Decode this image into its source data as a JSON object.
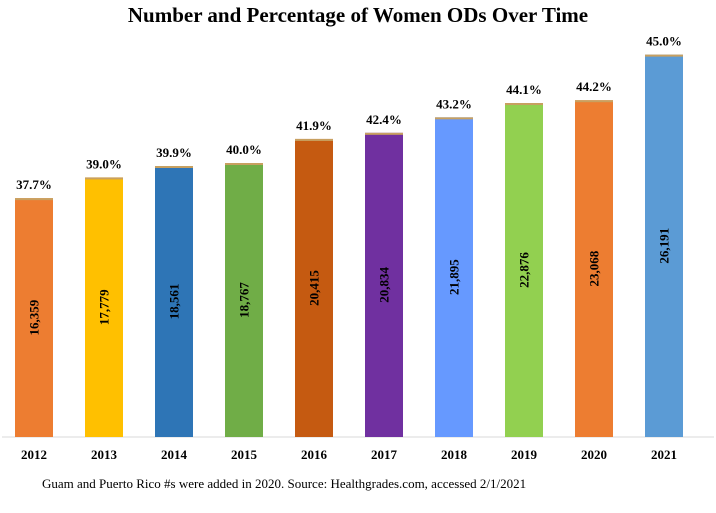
{
  "chart_data": {
    "type": "bar",
    "title": "Number and Percentage of Women ODs Over Time",
    "xlabel": "",
    "ylabel": "",
    "ylim": [
      0,
      28000
    ],
    "grid": false,
    "legend": "none",
    "categories": [
      "2012",
      "2013",
      "2014",
      "2015",
      "2016",
      "2017",
      "2018",
      "2019",
      "2020",
      "2021"
    ],
    "series": [
      {
        "values": [
          16359,
          17779,
          18561,
          18767,
          20415,
          20834,
          21895,
          22876,
          23068,
          26191
        ],
        "value_labels": [
          "16,359",
          "17,779",
          "18,561",
          "18,767",
          "20,415",
          "20,834",
          "21,895",
          "22,876",
          "23,068",
          "26,191"
        ],
        "percent_labels": [
          "37.7%",
          "39.0%",
          "39.9%",
          "40.0%",
          "41.9%",
          "42.4%",
          "43.2%",
          "44.1%",
          "44.2%",
          "45.0%"
        ],
        "colors": [
          "#ED7D31",
          "#FFC000",
          "#2E75B6",
          "#70AD47",
          "#C55A11",
          "#7030A0",
          "#6699FF",
          "#92D050",
          "#ED7D31",
          "#5B9BD5"
        ]
      }
    ],
    "top_cap_color": "#C8A060",
    "footnote": "Guam and Puerto Rico #s were added in 2020. Source: Healthgrades.com, accessed 2/1/2021"
  }
}
